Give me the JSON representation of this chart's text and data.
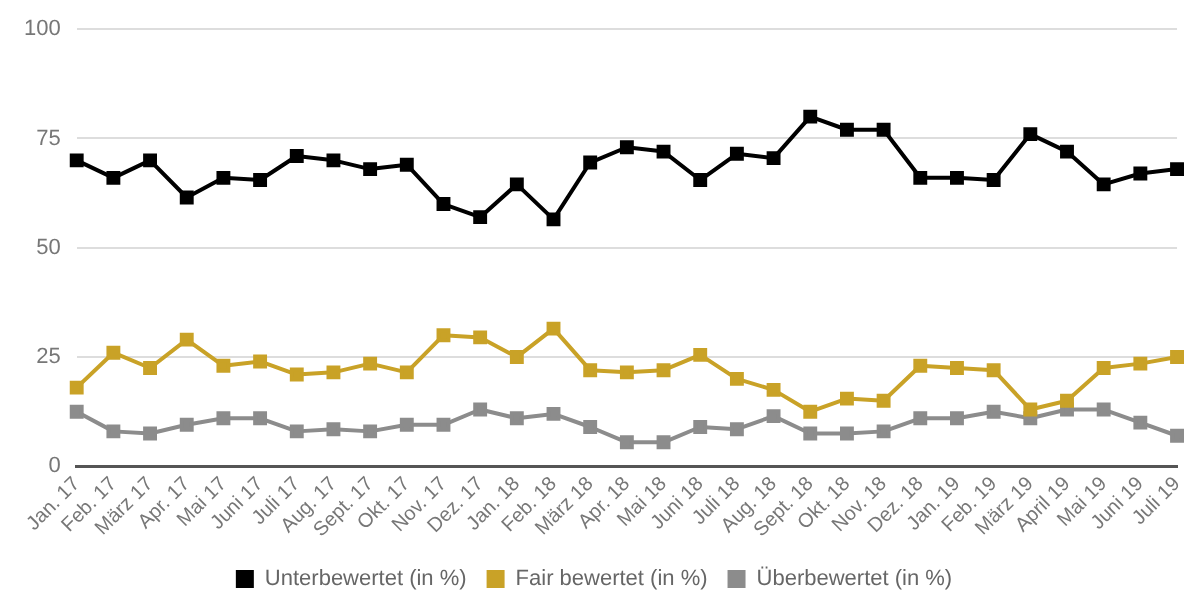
{
  "chart_data": {
    "type": "line",
    "categories": [
      "Jan. 17",
      "Feb. 17",
      "März 17",
      "Apr. 17",
      "Mai 17",
      "Juni 17",
      "Juli 17",
      "Aug. 17",
      "Sept. 17",
      "Okt. 17",
      "Nov. 17",
      "Dez. 17",
      "Jan. 18",
      "Feb. 18",
      "März 18",
      "Apr. 18",
      "Mai 18",
      "Juni 18",
      "Juli 18",
      "Aug. 18",
      "Sept. 18",
      "Okt. 18",
      "Nov. 18",
      "Dez. 18",
      "Jan. 19",
      "Feb. 19",
      "März 19",
      "April 19",
      "Mai 19",
      "Juni 19",
      "Juli 19"
    ],
    "series": [
      {
        "name": "Unterbewertet (in %)",
        "color": "#000000",
        "values": [
          70,
          66,
          70,
          61.5,
          66,
          65.5,
          71,
          70,
          68,
          69,
          60,
          57,
          64.5,
          56.5,
          69.5,
          73,
          72,
          65.5,
          71.5,
          70.5,
          80,
          77,
          77,
          66,
          66,
          65.5,
          76,
          72,
          64.5,
          67,
          68
        ]
      },
      {
        "name": "Fair bewertet (in %)",
        "color": "#c9a227",
        "values": [
          18,
          26,
          22.5,
          29,
          23,
          24,
          21,
          21.5,
          23.5,
          21.5,
          30,
          29.5,
          25,
          31.5,
          22,
          21.5,
          22,
          25.5,
          20,
          17.5,
          12.5,
          15.5,
          15,
          23,
          22.5,
          22,
          13,
          15,
          22.5,
          23.5,
          25
        ]
      },
      {
        "name": "Überbewertet (in %)",
        "color": "#8c8c8c",
        "values": [
          12.5,
          8,
          7.5,
          9.5,
          11,
          11,
          8,
          8.5,
          8,
          9.5,
          9.5,
          13,
          11,
          12,
          9,
          5.5,
          5.5,
          9,
          8.5,
          11.5,
          7.5,
          7.5,
          8,
          11,
          11,
          12.5,
          11,
          13,
          13,
          10,
          7
        ]
      }
    ],
    "ylim": [
      0,
      100
    ],
    "yticks": [
      0,
      25,
      50,
      75,
      100
    ],
    "grid": "y",
    "legend": "bottom",
    "marker": "square",
    "line_style": "solid"
  }
}
